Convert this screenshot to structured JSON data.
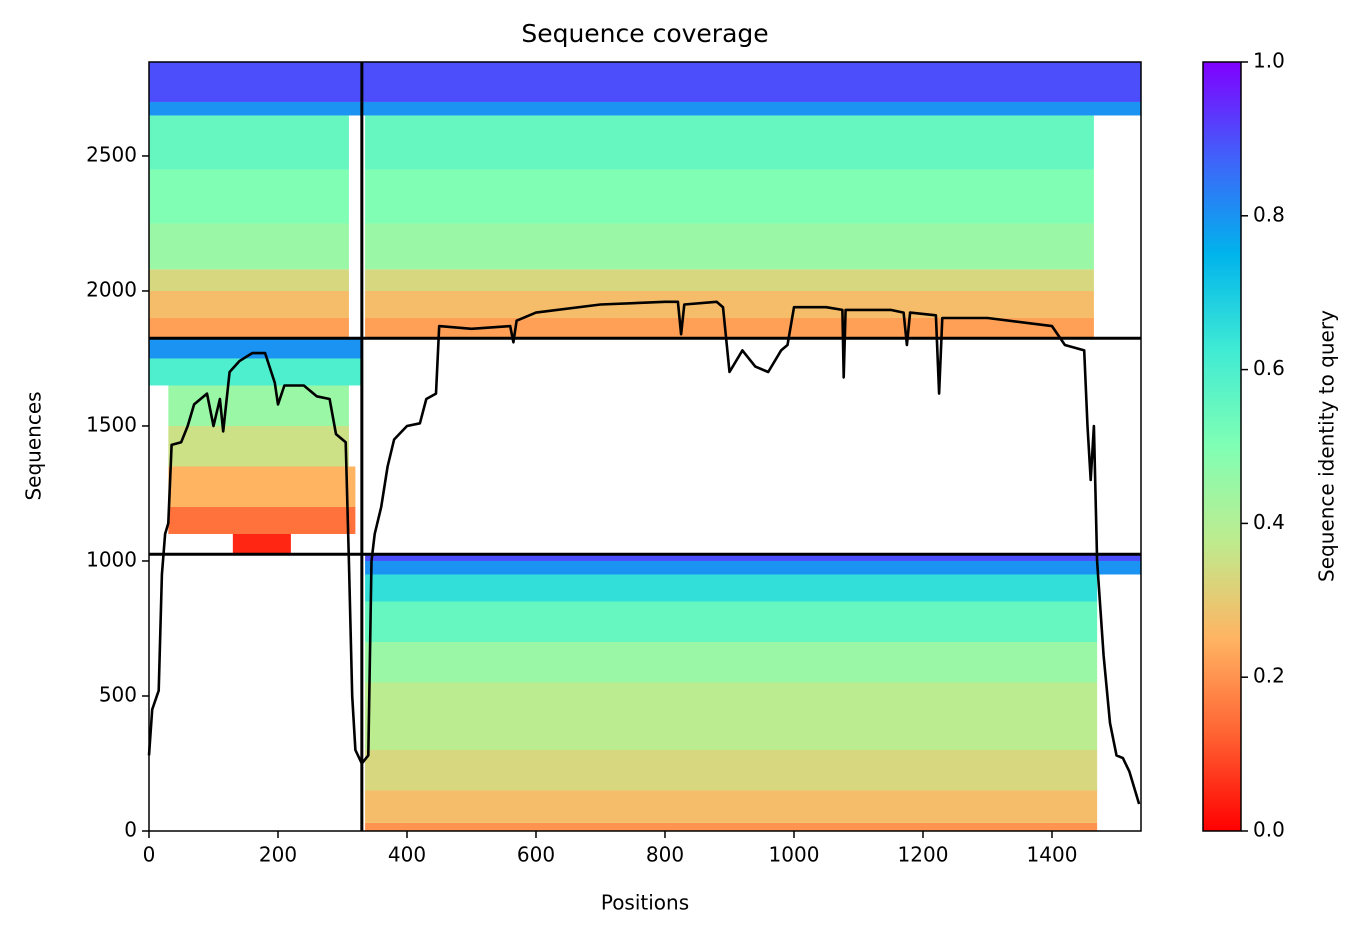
{
  "chart_data": {
    "type": "coverage",
    "title": "Sequence coverage",
    "xlabel": "Positions",
    "ylabel": "Sequences",
    "colorbar_label": "Sequence identity to query",
    "xlim": [
      0,
      1538
    ],
    "xticks": [
      0,
      200,
      400,
      600,
      800,
      1000,
      1200,
      1400
    ],
    "ylim": [
      0,
      2848
    ],
    "yticks": [
      0,
      500,
      1000,
      1500,
      2000,
      2500
    ],
    "clim": [
      0,
      1
    ],
    "cticks": [
      {
        "value": 0,
        "label": "0.0"
      },
      {
        "value": 0.2,
        "label": "0.2"
      },
      {
        "value": 0.4,
        "label": "0.4"
      },
      {
        "value": 0.6,
        "label": "0.6"
      },
      {
        "value": 0.8,
        "label": "0.8"
      },
      {
        "value": 1,
        "label": "1.0"
      }
    ],
    "colormap": [
      "#ff0000",
      "#ff6232",
      "#ffb462",
      "#bfeb8e",
      "#80ffb4",
      "#40ebd4",
      "#00b4ec",
      "#4062fa",
      "#8000ff"
    ],
    "line_color": "#000000",
    "bands": [
      {
        "x0": 0,
        "x1": 310,
        "y0": 1825,
        "y1": 1900,
        "identity": 0.22
      },
      {
        "x0": 0,
        "x1": 310,
        "y0": 1900,
        "y1": 2000,
        "identity": 0.27
      },
      {
        "x0": 0,
        "x1": 310,
        "y0": 2000,
        "y1": 2080,
        "identity": 0.33
      },
      {
        "x0": 0,
        "x1": 310,
        "y0": 2080,
        "y1": 2250,
        "identity": 0.45
      },
      {
        "x0": 0,
        "x1": 310,
        "y0": 2250,
        "y1": 2450,
        "identity": 0.5
      },
      {
        "x0": 0,
        "x1": 310,
        "y0": 2450,
        "y1": 2650,
        "identity": 0.55
      },
      {
        "x0": 335,
        "x1": 1465,
        "y0": 1825,
        "y1": 1900,
        "identity": 0.22
      },
      {
        "x0": 335,
        "x1": 1465,
        "y0": 1900,
        "y1": 2000,
        "identity": 0.27
      },
      {
        "x0": 335,
        "x1": 1465,
        "y0": 2000,
        "y1": 2080,
        "identity": 0.33
      },
      {
        "x0": 335,
        "x1": 1465,
        "y0": 2080,
        "y1": 2250,
        "identity": 0.45
      },
      {
        "x0": 335,
        "x1": 1465,
        "y0": 2250,
        "y1": 2450,
        "identity": 0.5
      },
      {
        "x0": 335,
        "x1": 1465,
        "y0": 2450,
        "y1": 2650,
        "identity": 0.55
      },
      {
        "x0": 0,
        "x1": 1538,
        "y0": 2650,
        "y1": 2700,
        "identity": 0.8
      },
      {
        "x0": 0,
        "x1": 1538,
        "y0": 2700,
        "y1": 2848,
        "identity": 0.9
      },
      {
        "x0": 130,
        "x1": 220,
        "y0": 1025,
        "y1": 1100,
        "identity": 0.05
      },
      {
        "x0": 30,
        "x1": 320,
        "y0": 1100,
        "y1": 1200,
        "identity": 0.15
      },
      {
        "x0": 30,
        "x1": 320,
        "y0": 1200,
        "y1": 1350,
        "identity": 0.25
      },
      {
        "x0": 30,
        "x1": 310,
        "y0": 1350,
        "y1": 1500,
        "identity": 0.35
      },
      {
        "x0": 30,
        "x1": 310,
        "y0": 1500,
        "y1": 1650,
        "identity": 0.45
      },
      {
        "x0": 0,
        "x1": 330,
        "y0": 1650,
        "y1": 1750,
        "identity": 0.6
      },
      {
        "x0": 0,
        "x1": 330,
        "y0": 1750,
        "y1": 1825,
        "identity": 0.8
      },
      {
        "x0": 335,
        "x1": 1470,
        "y0": 0,
        "y1": 30,
        "identity": 0.2
      },
      {
        "x0": 335,
        "x1": 1470,
        "y0": 30,
        "y1": 150,
        "identity": 0.27
      },
      {
        "x0": 335,
        "x1": 1470,
        "y0": 150,
        "y1": 300,
        "identity": 0.33
      },
      {
        "x0": 335,
        "x1": 1470,
        "y0": 300,
        "y1": 550,
        "identity": 0.38
      },
      {
        "x0": 335,
        "x1": 1470,
        "y0": 550,
        "y1": 700,
        "identity": 0.45
      },
      {
        "x0": 335,
        "x1": 1470,
        "y0": 700,
        "y1": 850,
        "identity": 0.55
      },
      {
        "x0": 335,
        "x1": 1470,
        "y0": 850,
        "y1": 950,
        "identity": 0.65
      },
      {
        "x0": 335,
        "x1": 1538,
        "y0": 950,
        "y1": 1000,
        "identity": 0.8
      },
      {
        "x0": 335,
        "x1": 1538,
        "y0": 1000,
        "y1": 1025,
        "identity": 0.9
      }
    ],
    "dividers_x": [
      330
    ],
    "dividers_y": [
      1825,
      1025
    ],
    "x": [
      0,
      5,
      15,
      20,
      25,
      30,
      35,
      50,
      60,
      70,
      90,
      100,
      110,
      115,
      125,
      140,
      160,
      180,
      195,
      200,
      210,
      240,
      260,
      280,
      290,
      305,
      310,
      315,
      320,
      330,
      340,
      345,
      350,
      360,
      370,
      380,
      400,
      420,
      430,
      445,
      450,
      500,
      560,
      565,
      570,
      600,
      700,
      800,
      820,
      825,
      830,
      880,
      890,
      900,
      920,
      940,
      960,
      980,
      990,
      1000,
      1050,
      1075,
      1077,
      1080,
      1150,
      1170,
      1175,
      1180,
      1220,
      1225,
      1230,
      1300,
      1400,
      1420,
      1450,
      1455,
      1460,
      1465,
      1470,
      1480,
      1490,
      1500,
      1510,
      1520,
      1535
    ],
    "values": [
      280,
      450,
      520,
      950,
      1100,
      1140,
      1430,
      1440,
      1500,
      1580,
      1620,
      1500,
      1600,
      1480,
      1700,
      1740,
      1770,
      1770,
      1660,
      1580,
      1650,
      1650,
      1610,
      1600,
      1470,
      1440,
      1000,
      500,
      300,
      250,
      280,
      1000,
      1100,
      1200,
      1350,
      1450,
      1500,
      1510,
      1600,
      1620,
      1870,
      1860,
      1870,
      1810,
      1890,
      1920,
      1950,
      1960,
      1960,
      1840,
      1950,
      1960,
      1940,
      1700,
      1780,
      1720,
      1700,
      1780,
      1800,
      1940,
      1940,
      1930,
      1680,
      1930,
      1930,
      1920,
      1800,
      1920,
      1910,
      1620,
      1900,
      1900,
      1870,
      1800,
      1780,
      1500,
      1300,
      1500,
      1000,
      650,
      400,
      280,
      270,
      220,
      100
    ]
  }
}
